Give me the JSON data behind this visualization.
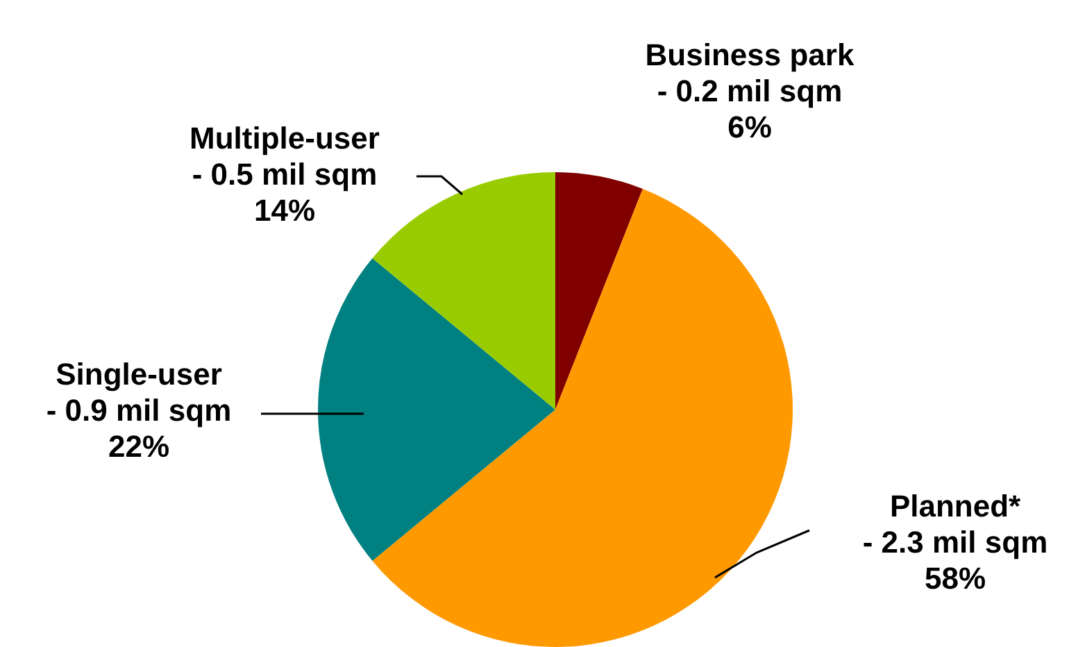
{
  "chart_data": {
    "type": "pie",
    "categories": [
      "Business park",
      "Planned*",
      "Single-user",
      "Multiple-user"
    ],
    "values": [
      6,
      58,
      22,
      14
    ],
    "colors": [
      "#800000",
      "#ff9900",
      "#008080",
      "#99cc00"
    ],
    "value_labels": [
      "- 0.2 mil sqm\n6%",
      "- 2.3 mil sqm\n58%",
      "- 0.9 mil sqm\n22%",
      "- 0.5 mil sqm\n14%"
    ],
    "legend": false
  }
}
